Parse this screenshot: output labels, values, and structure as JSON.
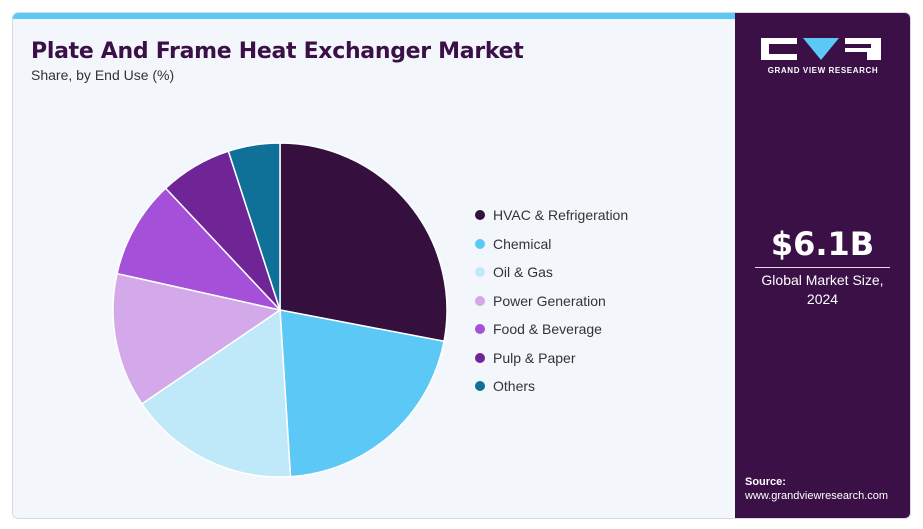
{
  "header": {
    "title": "Plate And Frame Heat Exchanger Market",
    "subtitle": "Share, by End Use (%)"
  },
  "chart_data": {
    "type": "pie",
    "title": "Plate And Frame Heat Exchanger Market",
    "subtitle": "Share, by End Use (%)",
    "categories": [
      "HVAC & Refrigeration",
      "Chemical",
      "Oil & Gas",
      "Power Generation",
      "Food & Beverage",
      "Pulp & Paper",
      "Others"
    ],
    "values": [
      28,
      21,
      16.5,
      13,
      9.5,
      7,
      5
    ],
    "colors": [
      "#35103f",
      "#5bc8f5",
      "#bfe8f9",
      "#d4a9ea",
      "#a450d8",
      "#6f2596",
      "#0f7098"
    ],
    "legend_position": "right"
  },
  "sidebar": {
    "logo_text": "GRAND VIEW RESEARCH",
    "market_value": "$6.1B",
    "market_label_line1": "Global Market Size,",
    "market_label_line2": "2024",
    "source_title": "Source:",
    "source_url": "www.grandviewresearch.com"
  }
}
